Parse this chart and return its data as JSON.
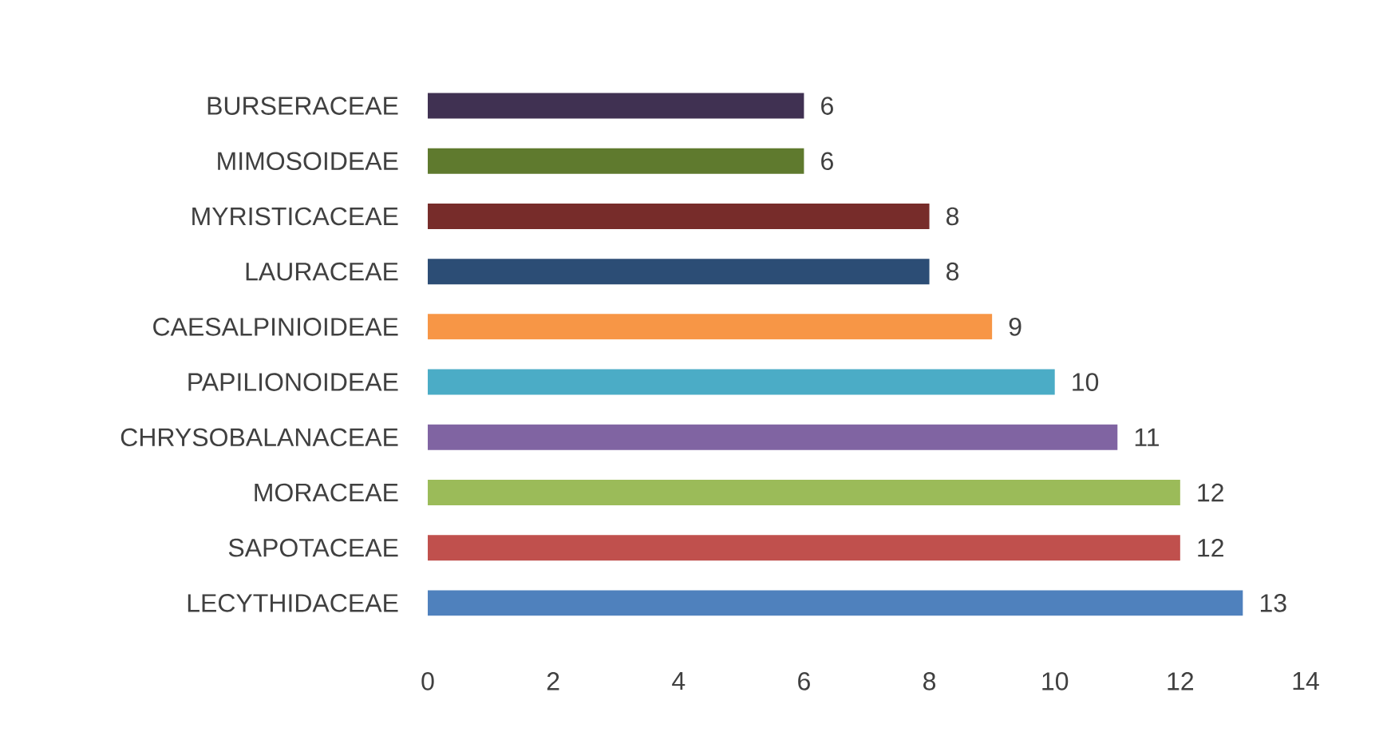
{
  "chart_data": {
    "type": "bar",
    "orientation": "horizontal",
    "categories": [
      "BURSERACEAE",
      "MIMOSOIDEAE",
      "MYRISTICACEAE",
      "LAURACEAE",
      "CAESALPINIOIDEAE",
      "PAPILIONOIDEAE",
      "CHRYSOBALANACEAE",
      "MORACEAE",
      "SAPOTACEAE",
      "LECYTHIDACEAE"
    ],
    "values": [
      6,
      6,
      8,
      8,
      9,
      10,
      11,
      12,
      12,
      13
    ],
    "colors": [
      "#403152",
      "#5f7a2e",
      "#772c2a",
      "#2c4d75",
      "#f79646",
      "#4bacc6",
      "#8064a2",
      "#9bbb59",
      "#c0504d",
      "#4f81bd"
    ],
    "xlim": [
      0,
      14
    ],
    "xticks": [
      0,
      2,
      4,
      6,
      8,
      10,
      12,
      14
    ],
    "data_labels": true
  }
}
